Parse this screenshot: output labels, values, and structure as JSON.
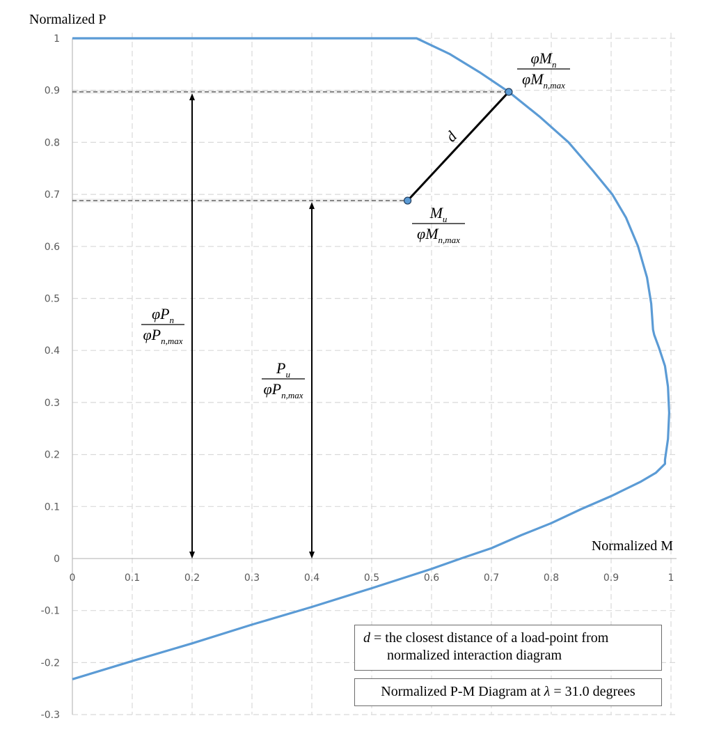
{
  "chart_data": {
    "type": "line",
    "title": "Normalized P-M Diagram at λ = 31.0 degrees",
    "xlabel": "Normalized M",
    "ylabel": "Normalized P",
    "xlim": [
      0,
      1
    ],
    "ylim": [
      -0.3,
      1
    ],
    "x_ticks": [
      "0",
      "0.1",
      "0.2",
      "0.3",
      "0.4",
      "0.5",
      "0.6",
      "0.7",
      "0.8",
      "0.9",
      "1"
    ],
    "y_ticks": [
      "1",
      "0.9",
      "0.8",
      "0.7",
      "0.6",
      "0.5",
      "0.4",
      "0.3",
      "0.2",
      "0.1",
      "0",
      "-0.1",
      "-0.2",
      "-0.3"
    ],
    "grid": true,
    "series": [
      {
        "name": "Normalized interaction diagram",
        "color": "#5b9bd5",
        "points": [
          [
            0.0,
            1.0
          ],
          [
            0.575,
            1.0
          ],
          [
            0.63,
            0.97
          ],
          [
            0.68,
            0.935
          ],
          [
            0.729,
            0.897
          ],
          [
            0.78,
            0.85
          ],
          [
            0.829,
            0.8
          ],
          [
            0.87,
            0.745
          ],
          [
            0.902,
            0.7
          ],
          [
            0.925,
            0.655
          ],
          [
            0.945,
            0.6
          ],
          [
            0.96,
            0.54
          ],
          [
            0.967,
            0.49
          ],
          [
            0.97,
            0.44
          ],
          [
            0.972,
            0.43
          ],
          [
            0.98,
            0.405
          ],
          [
            0.99,
            0.37
          ],
          [
            0.995,
            0.33
          ],
          [
            0.997,
            0.28
          ],
          [
            0.995,
            0.23
          ],
          [
            0.99,
            0.19
          ],
          [
            0.99,
            0.182
          ],
          [
            0.975,
            0.165
          ],
          [
            0.95,
            0.148
          ],
          [
            0.9,
            0.12
          ],
          [
            0.85,
            0.095
          ],
          [
            0.8,
            0.068
          ],
          [
            0.75,
            0.045
          ],
          [
            0.7,
            0.02
          ],
          [
            0.649,
            0.0
          ],
          [
            0.6,
            -0.02
          ],
          [
            0.5,
            -0.057
          ],
          [
            0.4,
            -0.093
          ],
          [
            0.3,
            -0.127
          ],
          [
            0.2,
            -0.163
          ],
          [
            0.1,
            -0.197
          ],
          [
            0.0,
            -0.232
          ]
        ]
      }
    ],
    "annotations": {
      "capacity_point": {
        "x": 0.729,
        "y": 0.897,
        "label_num": "φM",
        "label_num_sub": "n",
        "label_den": "φM",
        "label_den_sub": "n,max"
      },
      "load_point": {
        "x": 0.56,
        "y": 0.688,
        "label_num": "M",
        "label_num_sub": "u",
        "label_den": "φM",
        "label_den_sub": "n,max"
      },
      "distance_label": "d",
      "arrow_phiPn": {
        "x": 0.2,
        "y_top": 0.897,
        "label_num": "φP",
        "label_num_sub": "n",
        "label_den": "φP",
        "label_den_sub": "n,max"
      },
      "arrow_Pu": {
        "x": 0.4,
        "y_top": 0.688,
        "label_num": "P",
        "label_num_sub": "u",
        "label_den": "φP",
        "label_den_sub": "n,max"
      }
    }
  },
  "legend": {
    "note_var": "d",
    "note_eq": " = ",
    "note_line1": "the closest distance of a load-point from",
    "note_line2": "normalized interaction diagram",
    "title_prefix": "Normalized P-M Diagram at ",
    "title_symbol": "λ",
    "title_suffix": " = 31.0 degrees"
  }
}
